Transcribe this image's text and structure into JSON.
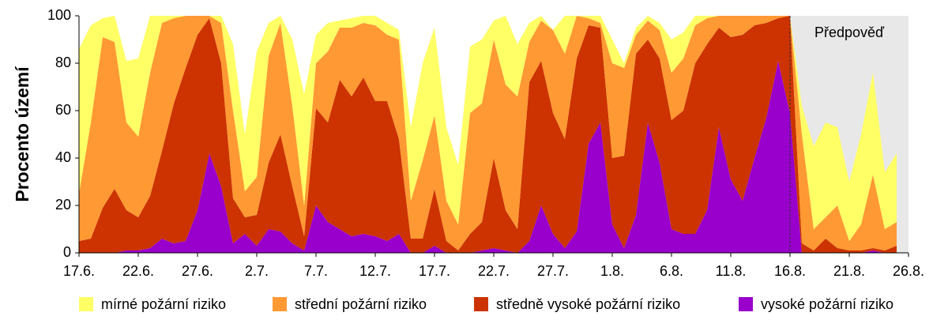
{
  "chart_data": {
    "type": "stacked_area",
    "y_label": "Procento území",
    "categories": [
      "17.6.",
      null,
      null,
      null,
      null,
      "22.6.",
      null,
      null,
      null,
      null,
      "27.6.",
      null,
      null,
      null,
      null,
      "2.7.",
      null,
      null,
      null,
      null,
      "7.7.",
      null,
      null,
      null,
      null,
      "12.7.",
      null,
      null,
      null,
      null,
      "17.7.",
      null,
      null,
      null,
      null,
      "22.7.",
      null,
      null,
      null,
      null,
      "27.7.",
      null,
      null,
      null,
      null,
      "1.8.",
      null,
      null,
      null,
      null,
      "6.8.",
      null,
      null,
      null,
      null,
      "11.8.",
      null,
      null,
      null,
      null,
      "16.8.",
      null,
      null,
      null,
      null,
      "21.8.",
      null,
      null,
      null,
      null,
      "26.8."
    ],
    "series": [
      {
        "name": "mírné požární riziko",
        "color": "#ffff66",
        "values": [
          61,
          41,
          8,
          11,
          26,
          33,
          24,
          3,
          1,
          0,
          0,
          0,
          3,
          28,
          24,
          53,
          14,
          3,
          28,
          47,
          12,
          12,
          3,
          4,
          3,
          4,
          5,
          4,
          31,
          41,
          37,
          31,
          25,
          28,
          27,
          8,
          29,
          22,
          8,
          2,
          0,
          16,
          0,
          1,
          3,
          10,
          2,
          3,
          2,
          3,
          14,
          11,
          4,
          1,
          0,
          0,
          0,
          0,
          0,
          0,
          0,
          12,
          35,
          40,
          33,
          25,
          38,
          43,
          24,
          29,
          null
        ]
      },
      {
        "name": "střední požární riziko",
        "color": "#ff9933",
        "values": [
          20,
          49,
          72,
          62,
          37,
          34,
          52,
          54,
          36,
          22,
          8,
          1,
          17,
          37,
          11,
          16,
          45,
          47,
          34,
          13,
          19,
          30,
          22,
          29,
          23,
          32,
          28,
          42,
          16,
          33,
          31,
          17,
          11,
          51,
          50,
          50,
          53,
          56,
          17,
          17,
          35,
          36,
          18,
          3,
          2,
          40,
          37,
          8,
          8,
          12,
          20,
          22,
          16,
          11,
          5,
          9,
          8,
          4,
          3,
          1,
          0,
          46,
          9,
          9,
          18,
          4,
          11,
          31,
          9,
          10,
          null
        ]
      },
      {
        "name": "středně vysoké požární riziko",
        "color": "#cc3300",
        "values": [
          5,
          6,
          19,
          27,
          17,
          14,
          22,
          37,
          59,
          73,
          74,
          57,
          52,
          19,
          7,
          13,
          28,
          41,
          24,
          6,
          41,
          42,
          63,
          59,
          66,
          57,
          59,
          40,
          6,
          6,
          24,
          5,
          1,
          8,
          12,
          38,
          17,
          10,
          67,
          61,
          51,
          46,
          73,
          50,
          40,
          28,
          39,
          68,
          35,
          44,
          46,
          52,
          72,
          70,
          42,
          60,
          70,
          56,
          40,
          18,
          41,
          4,
          1,
          6,
          2,
          1,
          1,
          1,
          1,
          3,
          null
        ]
      },
      {
        "name": "vysoké požární riziko",
        "color": "#9900cc",
        "values": [
          0,
          0,
          0,
          0,
          1,
          1,
          2,
          6,
          4,
          5,
          18,
          42,
          28,
          4,
          8,
          3,
          10,
          9,
          4,
          1,
          20,
          13,
          10,
          7,
          8,
          7,
          5,
          8,
          0,
          0,
          3,
          0,
          0,
          0,
          1,
          2,
          1,
          0,
          5,
          20,
          8,
          2,
          9,
          46,
          55,
          12,
          2,
          16,
          55,
          38,
          10,
          8,
          8,
          18,
          53,
          31,
          22,
          40,
          57,
          81,
          59,
          0,
          0,
          0,
          0,
          0,
          0,
          1,
          0,
          0,
          null
        ]
      }
    ],
    "ylim": [
      0,
      100
    ],
    "yticks": [
      0,
      20,
      40,
      60,
      80,
      100
    ],
    "annotations": [
      {
        "text": "Předpověď",
        "x": "16.8."
      }
    ]
  }
}
